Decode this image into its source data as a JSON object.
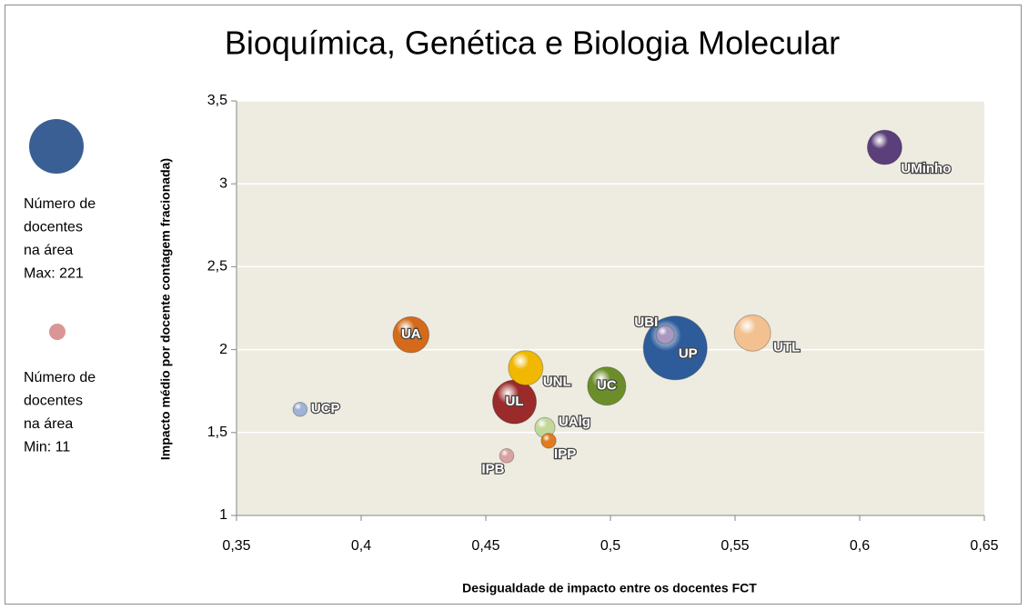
{
  "chart_data": {
    "type": "bubble",
    "title": "Bioquímica, Genética e Biologia Molecular",
    "x_label": "Desigualdade de impacto entre os docentes FCT",
    "y_label": "Impacto  médio por docente  contagem fracionada)",
    "xlim": [
      0.35,
      0.65
    ],
    "ylim": [
      1,
      3.5
    ],
    "xticks": [
      {
        "value": 0.35,
        "label": "0,35"
      },
      {
        "value": 0.4,
        "label": "0,4"
      },
      {
        "value": 0.45,
        "label": "0,45"
      },
      {
        "value": 0.5,
        "label": "0,5"
      },
      {
        "value": 0.55,
        "label": "0,55"
      },
      {
        "value": 0.6,
        "label": "0,6"
      },
      {
        "value": 0.65,
        "label": "0,65"
      }
    ],
    "yticks": [
      1,
      {
        "value": 1.5,
        "label": "1,5"
      },
      2,
      {
        "value": 2.5,
        "label": "2,5"
      },
      3,
      {
        "value": 3.5,
        "label": "3,5"
      }
    ],
    "grid": true,
    "size_max": 221,
    "size_min": 11,
    "legend_max": [
      "Número de",
      "docentes",
      "na área",
      "Max: 221"
    ],
    "legend_min": [
      "Número de",
      "docentes",
      "na área",
      "Min: 11"
    ],
    "legend_max_color": "#3a5f94",
    "legend_min_color": "#d99694",
    "points": [
      {
        "label": "UMinho",
        "x": 0.61,
        "y": 3.22,
        "size": 65,
        "color": "#5b3f7a"
      },
      {
        "label": "UA",
        "x": 0.42,
        "y": 2.09,
        "size": 71,
        "color": "#d46a1a"
      },
      {
        "label": "UBI",
        "x": 0.522,
        "y": 2.09,
        "size": 18,
        "color": "#a899c0"
      },
      {
        "label": "UP",
        "x": 0.526,
        "y": 2.01,
        "size": 221,
        "color": "#2e5c9a"
      },
      {
        "label": "UTL",
        "x": 0.557,
        "y": 2.1,
        "size": 72,
        "color": "#f3c08f"
      },
      {
        "label": "UNL",
        "x": 0.466,
        "y": 1.89,
        "size": 65,
        "color": "#f0b800"
      },
      {
        "label": "UC",
        "x": 0.4985,
        "y": 1.78,
        "size": 80,
        "color": "#6b8e2a"
      },
      {
        "label": "UL",
        "x": 0.4615,
        "y": 1.685,
        "size": 104,
        "color": "#9b2a2a"
      },
      {
        "label": "UAlg",
        "x": 0.4737,
        "y": 1.53,
        "size": 22,
        "color": "#c4d79b"
      },
      {
        "label": "IPP",
        "x": 0.4752,
        "y": 1.45,
        "size": 12,
        "color": "#e07b1f"
      },
      {
        "label": "IPB",
        "x": 0.4584,
        "y": 1.36,
        "size": 11,
        "color": "#d9a3a3"
      },
      {
        "label": "UCP",
        "x": 0.3755,
        "y": 1.64,
        "size": 11,
        "color": "#9fb3d6"
      }
    ]
  }
}
